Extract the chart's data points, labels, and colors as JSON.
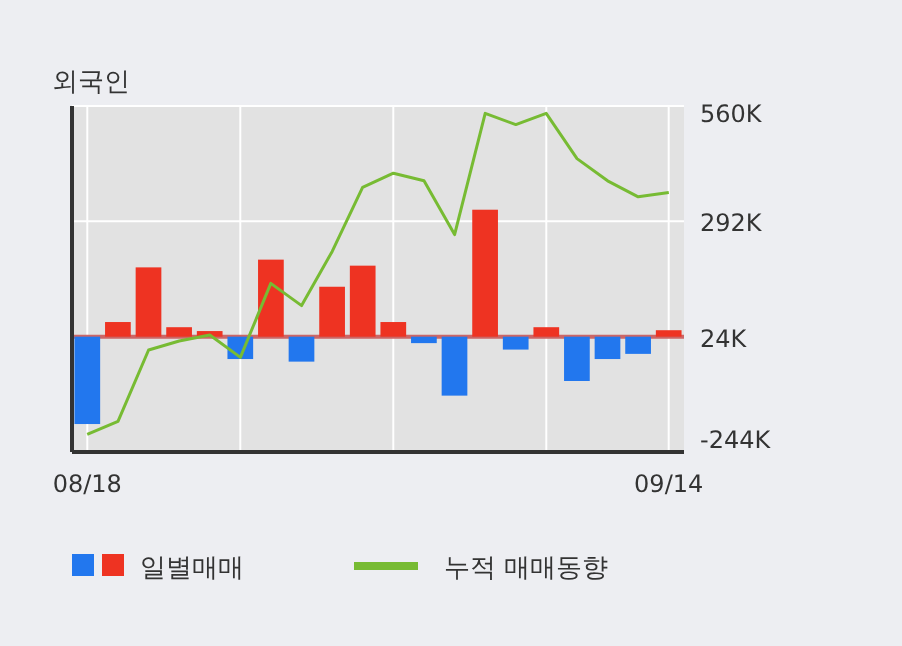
{
  "chart_data": {
    "type": "bar",
    "title": "외국인",
    "categories": [
      "08/18",
      null,
      null,
      null,
      null,
      null,
      null,
      null,
      null,
      null,
      null,
      null,
      null,
      null,
      null,
      null,
      null,
      null,
      null,
      "09/14"
    ],
    "series": [
      {
        "name": "일별매매",
        "values": [
          -203,
          34,
          161,
          22,
          13,
          -52,
          179,
          -58,
          116,
          165,
          34,
          -15,
          -137,
          295,
          -30,
          22,
          -103,
          -52,
          -40,
          15
        ],
        "base": [
          24,
          24,
          24,
          24,
          24,
          24,
          24,
          24,
          24,
          24,
          24,
          24,
          24,
          24,
          24,
          24,
          24,
          24,
          24,
          24
        ],
        "colors": [
          "#2277ee",
          "#ee3322",
          "#ee3322",
          "#ee3322",
          "#ee3322",
          "#2277ee",
          "#ee3322",
          "#2277ee",
          "#ee3322",
          "#ee3322",
          "#ee3322",
          "#2277ee",
          "#2277ee",
          "#ee3322",
          "#2277ee",
          "#ee3322",
          "#2277ee",
          "#2277ee",
          "#2277ee",
          "#ee3322"
        ]
      },
      {
        "name": "누적 매매동향",
        "type": "line",
        "color": "#77bb33",
        "values": [
          -203,
          -173,
          -7,
          14,
          28,
          -24,
          148,
          96,
          222,
          371,
          404,
          386,
          261,
          543,
          517,
          543,
          438,
          386,
          349,
          359
        ]
      }
    ],
    "ylim": [
      -244,
      560
    ],
    "yticks": [
      {
        "value": 560,
        "label": "560K"
      },
      {
        "value": 292,
        "label": "292K"
      },
      {
        "value": 24,
        "label": "24K"
      },
      {
        "value": -244,
        "label": "-244K"
      }
    ],
    "ref_lines": [
      {
        "axis": "y",
        "value": 24,
        "label": null,
        "color": "#cc6666"
      }
    ],
    "grid": true,
    "legend": "bottom"
  }
}
